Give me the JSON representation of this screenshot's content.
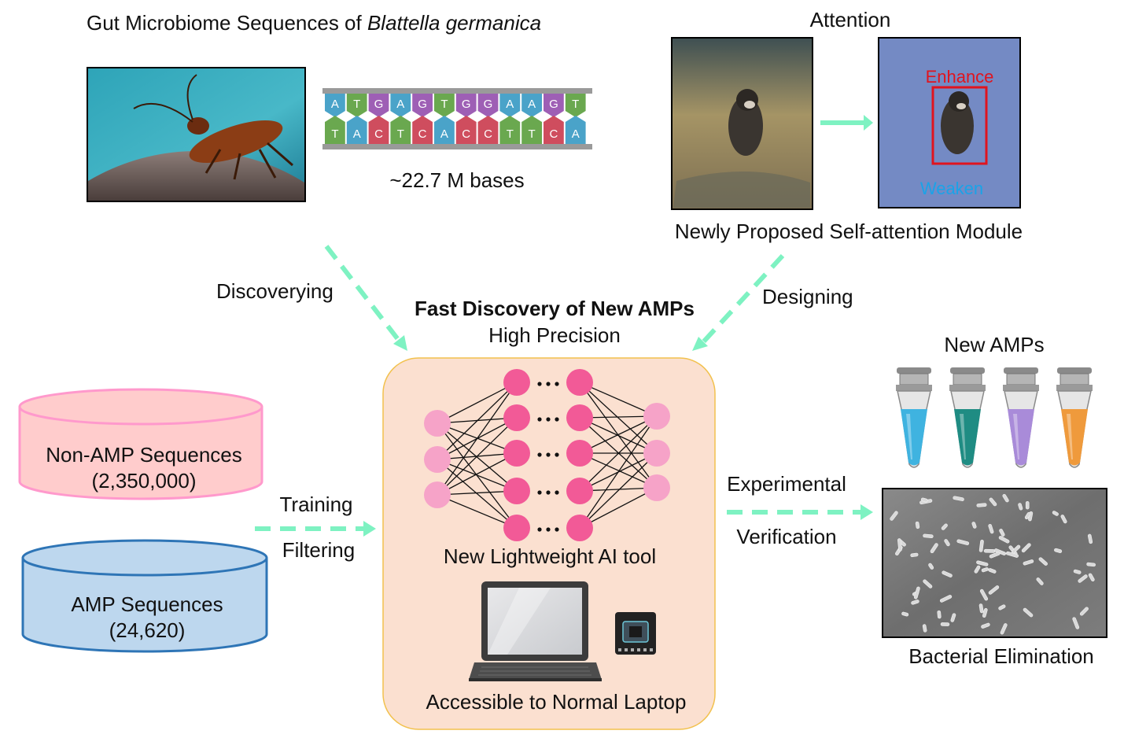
{
  "top_left": {
    "title_prefix": "Gut Microbiome Sequences of ",
    "title_species": "Blattella germanica",
    "bases_label": "~22.7 M bases"
  },
  "dna": {
    "top_strand": [
      "A",
      "T",
      "G",
      "A",
      "G",
      "T",
      "G",
      "G",
      "A",
      "A",
      "G",
      "T"
    ],
    "bottom_strand": [
      "T",
      "A",
      "C",
      "T",
      "C",
      "A",
      "C",
      "C",
      "T",
      "T",
      "C",
      "A"
    ],
    "base_colors": {
      "A": "#4aa3c9",
      "T": "#6aa84f",
      "G": "#9e5fb5",
      "C": "#cf4d5e"
    }
  },
  "attention": {
    "title": "Attention",
    "enhance_label": "Enhance",
    "weaken_label": "Weaken",
    "module_label": "Newly Proposed Self-attention Module"
  },
  "flow": {
    "discovering": "Discoverying",
    "designing": "Designing",
    "training": "Training",
    "filtering": "Filtering",
    "experimental": "Experimental",
    "verification": "Verification"
  },
  "center": {
    "title": "Fast Discovery of New AMPs",
    "subtitle": "High Precision",
    "nn_label": "New Lightweight AI tool",
    "laptop_label": "Accessible to Normal Laptop"
  },
  "databases": {
    "non_amp_label": "Non-AMP Sequences",
    "non_amp_count": "(2,350,000)",
    "amp_label": "AMP Sequences",
    "amp_count": "(24,620)"
  },
  "results": {
    "new_amps": "New AMPs",
    "tube_colors": [
      "#3fb3e0",
      "#1f8c83",
      "#a98bd9",
      "#ef9a3c"
    ],
    "elimination": "Bacterial Elimination"
  },
  "colors": {
    "arrow": "#7ef2c2",
    "panel_fill": "#fbe0d0",
    "panel_border": "#f2c14e",
    "node": "#f25a97",
    "node_light": "#f6a3c8",
    "non_amp_fill": "#ffcccc",
    "non_amp_stroke": "#ff99cc",
    "amp_fill": "#bdd7ee",
    "amp_stroke": "#2e75b6"
  }
}
